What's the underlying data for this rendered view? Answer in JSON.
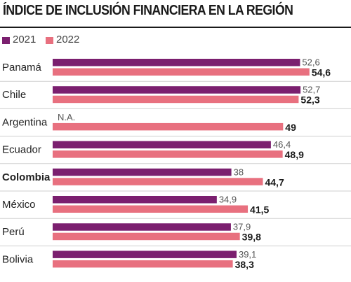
{
  "title": "ÍNDICE DE INCLUSIÓN FINANCIERA EN LA REGIÓN",
  "colors": {
    "s2021": "#7b1f6f",
    "s2022": "#e8707f",
    "divider": "#cfcfcf"
  },
  "chart_data": {
    "type": "bar",
    "orientation": "horizontal",
    "title": "ÍNDICE DE INCLUSIÓN FINANCIERA EN LA REGIÓN",
    "legend": "top-left",
    "xlim": [
      0,
      60
    ],
    "categories": [
      "Panamá",
      "Chile",
      "Argentina",
      "Ecuador",
      "Colombia",
      "México",
      "Perú",
      "Bolivia"
    ],
    "highlight": "Colombia",
    "series": [
      {
        "name": "2021",
        "values": [
          52.6,
          52.7,
          null,
          46.4,
          38,
          34.9,
          37.9,
          39.1
        ],
        "labels": [
          "52,6",
          "52,7",
          "N.A.",
          "46,4",
          "38",
          "34,9",
          "37,9",
          "39,1"
        ]
      },
      {
        "name": "2022",
        "values": [
          54.6,
          52.3,
          49,
          48.9,
          44.7,
          41.5,
          39.8,
          38.3
        ],
        "labels": [
          "54,6",
          "52,3",
          "49",
          "48,9",
          "44,7",
          "41,5",
          "39,8",
          "38,3"
        ]
      }
    ]
  }
}
